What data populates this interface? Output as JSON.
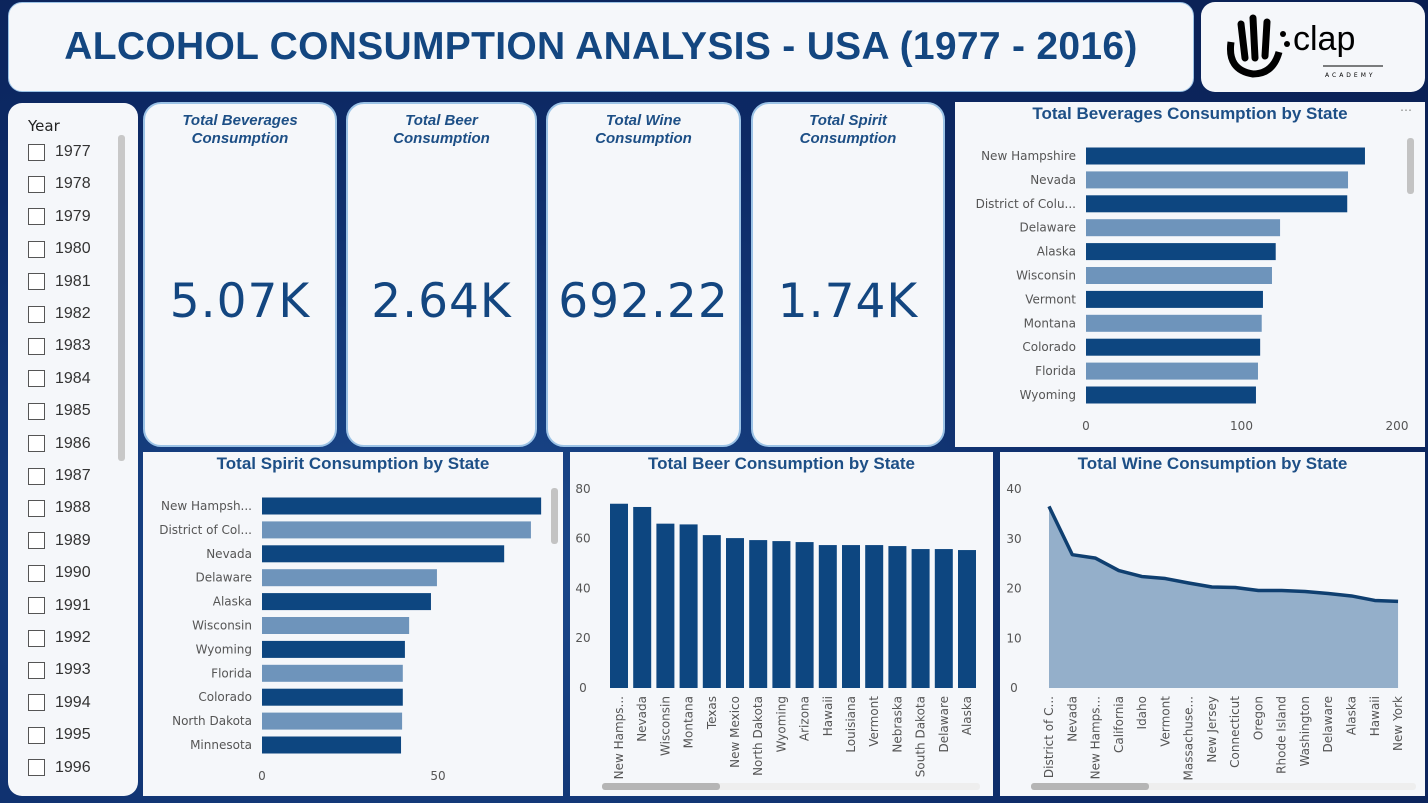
{
  "header": {
    "title": "ALCOHOL CONSUMPTION ANALYSIS - USA (1977 - 2016)",
    "logo_text": "clap ACADEMY"
  },
  "slicer": {
    "label": "Year",
    "years": [
      "1977",
      "1978",
      "1979",
      "1980",
      "1981",
      "1982",
      "1983",
      "1984",
      "1985",
      "1986",
      "1987",
      "1988",
      "1989",
      "1990",
      "1991",
      "1992",
      "1993",
      "1994",
      "1995",
      "1996"
    ]
  },
  "kpis": [
    {
      "title": "Total Beverages Consumption",
      "value": "5.07K"
    },
    {
      "title": "Total Beer Consumption",
      "value": "2.64K"
    },
    {
      "title": "Total Wine Consumption",
      "value": "692.22"
    },
    {
      "title": "Total Spirit Consumption",
      "value": "1.74K"
    }
  ],
  "colors": {
    "dark": "#0d4680",
    "light": "#6e94bb",
    "area": "#94afca",
    "line": "#0f3f70"
  },
  "chart_data": [
    {
      "type": "bar",
      "orientation": "horizontal",
      "title": "Total Beverages Consumption by State",
      "categories": [
        "New Hampshire",
        "Nevada",
        "District of Colu...",
        "Delaware",
        "Alaska",
        "Wisconsin",
        "Vermont",
        "Montana",
        "Colorado",
        "Florida",
        "Wyoming"
      ],
      "values": [
        179.4,
        168.5,
        168,
        124.8,
        122,
        119.6,
        113.8,
        113,
        112,
        110.6,
        109.3
      ],
      "xlim": [
        0,
        200
      ],
      "xticks": [
        "0",
        "100",
        "200"
      ]
    },
    {
      "type": "bar",
      "orientation": "horizontal",
      "title": "Total Spirit Consumption by State",
      "categories": [
        "New Hampsh...",
        "District of Col...",
        "Nevada",
        "Delaware",
        "Alaska",
        "Wisconsin",
        "Wyoming",
        "Florida",
        "Colorado",
        "North Dakota",
        "Minnesota"
      ],
      "values": [
        79.3,
        76.4,
        68.8,
        49.7,
        48,
        41.8,
        40.6,
        40,
        40,
        39.8,
        39.5
      ],
      "xlim": [
        0,
        80
      ],
      "xticks": [
        "0",
        "50"
      ]
    },
    {
      "type": "bar",
      "orientation": "vertical",
      "title": "Total Beer Consumption by State",
      "categories": [
        "New Hamps...",
        "Nevada",
        "Wisconsin",
        "Montana",
        "Texas",
        "New Mexico",
        "North Dakota",
        "Wyoming",
        "Arizona",
        "Hawaii",
        "Louisiana",
        "Vermont",
        "Nebraska",
        "South Dakota",
        "Delaware",
        "Alaska"
      ],
      "values": [
        74,
        72.7,
        66,
        65.7,
        61.4,
        60.2,
        59.4,
        59,
        58.6,
        57.4,
        57.4,
        57.4,
        57,
        55.8,
        55.8,
        55.4
      ],
      "ylim": [
        0,
        80
      ],
      "yticks": [
        "0",
        "20",
        "40",
        "60",
        "80"
      ]
    },
    {
      "type": "area",
      "title": "Total Wine Consumption by State",
      "categories": [
        "District of C...",
        "Nevada",
        "New Hamps...",
        "California",
        "Idaho",
        "Vermont",
        "Massachuse...",
        "New Jersey",
        "Connecticut",
        "Oregon",
        "Rhode Island",
        "Washington",
        "Delaware",
        "Alaska",
        "Hawaii",
        "New York"
      ],
      "values": [
        36.5,
        26.8,
        26.1,
        23.6,
        22.4,
        22.0,
        21.1,
        20.3,
        20.2,
        19.6,
        19.6,
        19.4,
        19.0,
        18.5,
        17.6,
        17.4
      ],
      "ylim": [
        0,
        40
      ],
      "yticks": [
        "0",
        "10",
        "20",
        "30",
        "40"
      ]
    }
  ]
}
